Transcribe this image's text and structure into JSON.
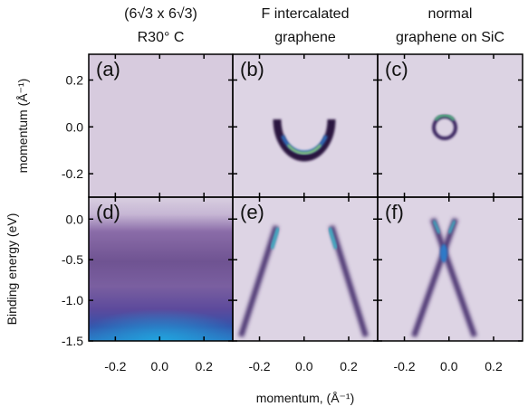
{
  "chart_data": {
    "type": "heatmap",
    "xlabel": "momentum, (Å⁻¹)",
    "xlim": [
      -0.32,
      0.33
    ],
    "xticks": [
      -0.2,
      {
        "value": 0,
        "label": "0.0"
      },
      0.2
    ],
    "columns": [
      {
        "title": [
          "(6√3 x 6√3)",
          "R30° C"
        ]
      },
      {
        "title": [
          "F intercalated",
          "graphene"
        ]
      },
      {
        "title": [
          "normal",
          "graphene on SiC"
        ]
      }
    ],
    "rows": [
      {
        "ylabel": "momentum (Å⁻¹)",
        "ylim": [
          -0.3,
          0.31
        ],
        "yticks": [
          0.2,
          {
            "value": 0,
            "label": "0.0"
          },
          -0.2
        ]
      },
      {
        "ylabel": "Binding energy (eV)",
        "ylim": [
          -1.5,
          0.27
        ],
        "yticks": [
          {
            "value": 0,
            "label": "0.0"
          },
          -0.5,
          {
            "value": -1,
            "label": "-1.0"
          },
          -1.5
        ]
      }
    ],
    "panels": [
      {
        "label": "(a)"
      },
      {
        "label": "(b)"
      },
      {
        "label": "(c)"
      },
      {
        "label": "(d)"
      },
      {
        "label": "(e)"
      },
      {
        "label": "(f)"
      }
    ]
  }
}
